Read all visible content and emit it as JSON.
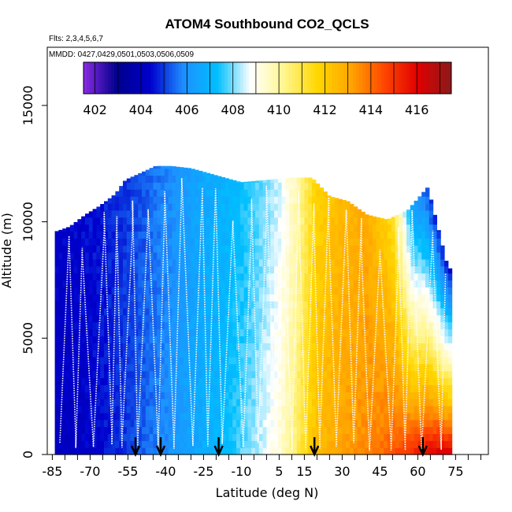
{
  "chart_data": {
    "type": "heatmap",
    "title": "ATOM4 Southbound CO2_QCLS",
    "flights_label": "Flts: 2,3,4,5,6,7",
    "dates_label": "MMDD: 0427,0429,0501,0503,0506,0509",
    "xlabel": "Latitude (deg N)",
    "ylabel": "Altitude (m)",
    "x_ticks": [
      -85,
      -70,
      -55,
      -40,
      -25,
      -10,
      5,
      15,
      30,
      45,
      60,
      75
    ],
    "y_ticks": [
      0,
      5000,
      10000,
      15000
    ],
    "xlim": [
      -87,
      88
    ],
    "ylim": [
      0,
      17500
    ],
    "colorbar": {
      "ticks": [
        402,
        404,
        406,
        408,
        410,
        412,
        414,
        416
      ],
      "range": [
        401.5,
        417.5
      ],
      "palette": [
        "#8a2be2",
        "#00008b",
        "#0000cd",
        "#1e90ff",
        "#00bfff",
        "#ffffff",
        "#fff68f",
        "#ffd700",
        "#ffa500",
        "#ff4500",
        "#e00000",
        "#8b1a1a"
      ]
    },
    "vertical_profile_arrows_lat": [
      -52,
      -42,
      -19,
      19,
      62
    ],
    "latitude_profile": {
      "lat": [
        -83,
        -75,
        -65,
        -55,
        -45,
        -35,
        -25,
        -15,
        -5,
        5,
        12,
        20,
        30,
        40,
        50,
        58,
        65,
        72
      ],
      "co2_surface": [
        404.1,
        404.2,
        404.5,
        405.0,
        405.6,
        406.2,
        406.8,
        407.4,
        408.2,
        409.3,
        410.8,
        412.5,
        413.2,
        413.6,
        414.4,
        415.4,
        416.3,
        416.6
      ],
      "co2_upper": [
        404.3,
        404.4,
        404.7,
        405.0,
        405.5,
        406.1,
        406.6,
        407.0,
        407.6,
        408.5,
        409.8,
        411.8,
        412.6,
        412.9,
        411.5,
        406.5,
        404.8,
        404.5
      ]
    },
    "ceiling_profile": {
      "lat": [
        -83,
        -78,
        -72,
        -66,
        -60,
        -56,
        -50,
        -44,
        -38,
        -30,
        -20,
        -10,
        0,
        10,
        18,
        25,
        32,
        40,
        48,
        56,
        64,
        72
      ],
      "top_m": [
        9600,
        9800,
        10300,
        10700,
        11200,
        11800,
        12100,
        12400,
        12400,
        12300,
        12000,
        11700,
        11800,
        11900,
        11900,
        11100,
        10900,
        10300,
        10100,
        10500,
        11500,
        8000
      ]
    }
  }
}
